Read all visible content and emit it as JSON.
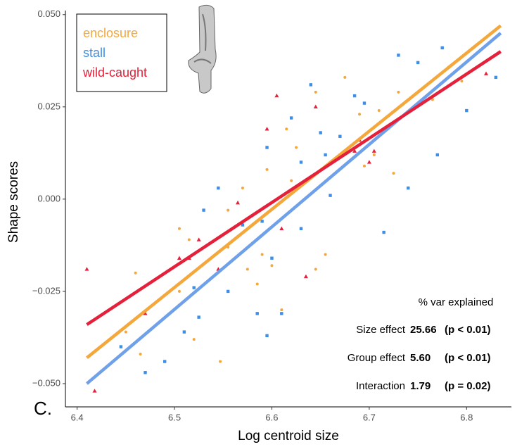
{
  "chart_data": {
    "type": "scatter",
    "panel_label": "C.",
    "x_label": "Log centroid size",
    "y_label": "Shape scores",
    "xlim": [
      6.388,
      6.846
    ],
    "ylim": [
      -0.0563,
      0.0511
    ],
    "xticks": [
      6.4,
      6.5,
      6.6,
      6.7,
      6.8
    ],
    "yticks": [
      {
        "value": -0.05,
        "label": "−0.050"
      },
      {
        "value": -0.025,
        "label": "−0.025"
      },
      {
        "value": 0,
        "label": "0.000"
      },
      {
        "value": 0.025,
        "label": "0.025"
      },
      {
        "value": 0.05,
        "label": "0.050"
      }
    ],
    "series": [
      {
        "name": "enclosure",
        "color": "#f4a73b",
        "marker": "circle",
        "x": [
          6.505,
          6.515,
          6.46,
          6.45,
          6.465,
          6.505,
          6.52,
          6.547,
          6.555,
          6.57,
          6.575,
          6.585,
          6.59,
          6.595,
          6.6,
          6.61,
          6.615,
          6.625,
          6.64,
          6.645,
          6.655,
          6.66,
          6.675,
          6.69,
          6.695,
          6.705,
          6.71,
          6.725,
          6.73,
          6.75,
          6.765,
          6.795,
          6.62,
          6.645,
          6.555
        ],
        "y": [
          -0.008,
          -0.011,
          -0.02,
          -0.036,
          -0.042,
          -0.025,
          -0.038,
          -0.044,
          -0.013,
          0.003,
          -0.019,
          -0.023,
          -0.015,
          0.008,
          -0.018,
          -0.03,
          0.019,
          0.014,
          0.031,
          0.029,
          -0.015,
          0.01,
          0.033,
          0.023,
          0.009,
          0.012,
          0.024,
          0.007,
          0.029,
          0.037,
          0.027,
          0.032,
          0.005,
          -0.019,
          -0.003
        ],
        "fit": {
          "x": [
            6.41,
            6.835
          ],
          "y": [
            -0.043,
            0.047
          ]
        }
      },
      {
        "name": "stall",
        "color": "#3d8ee6",
        "line_color": "#6fa0ea",
        "marker": "square",
        "x": [
          6.445,
          6.47,
          6.49,
          6.51,
          6.52,
          6.525,
          6.53,
          6.545,
          6.555,
          6.57,
          6.585,
          6.59,
          6.595,
          6.6,
          6.595,
          6.61,
          6.62,
          6.63,
          6.64,
          6.65,
          6.66,
          6.67,
          6.685,
          6.695,
          6.715,
          6.73,
          6.74,
          6.75,
          6.77,
          6.775,
          6.8,
          6.83,
          6.63,
          6.655
        ],
        "y": [
          -0.04,
          -0.047,
          -0.044,
          -0.036,
          -0.024,
          -0.032,
          -0.003,
          0.003,
          -0.025,
          -0.007,
          -0.031,
          -0.006,
          0.014,
          -0.016,
          -0.037,
          -0.031,
          0.022,
          0.01,
          0.031,
          0.018,
          0.001,
          0.017,
          0.028,
          0.026,
          -0.009,
          0.039,
          0.003,
          0.037,
          0.012,
          0.041,
          0.024,
          0.033,
          -0.008,
          0.012
        ],
        "fit": {
          "x": [
            6.41,
            6.835
          ],
          "y": [
            -0.05,
            0.045
          ]
        }
      },
      {
        "name": "wild-caught",
        "color": "#e4203a",
        "marker": "triangle",
        "x": [
          6.41,
          6.418,
          6.47,
          6.505,
          6.515,
          6.525,
          6.545,
          6.565,
          6.595,
          6.605,
          6.61,
          6.635,
          6.645,
          6.685,
          6.7,
          6.705,
          6.82,
          6.69
        ],
        "y": [
          -0.019,
          -0.052,
          -0.031,
          -0.016,
          -0.016,
          -0.011,
          -0.019,
          -0.001,
          0.019,
          0.028,
          -0.008,
          -0.021,
          0.025,
          0.013,
          0.01,
          0.013,
          0.034,
          0.016
        ],
        "fit": {
          "x": [
            6.41,
            6.835
          ],
          "y": [
            -0.034,
            0.04
          ]
        }
      }
    ],
    "stats": {
      "title": "% var explained",
      "rows": [
        [
          "Size effect",
          "25.66",
          "(p < 0.01)"
        ],
        [
          "Group effect",
          "5.60",
          "(p < 0.01)"
        ],
        [
          "Interaction",
          "1.79",
          "(p = 0.02)"
        ]
      ]
    }
  }
}
